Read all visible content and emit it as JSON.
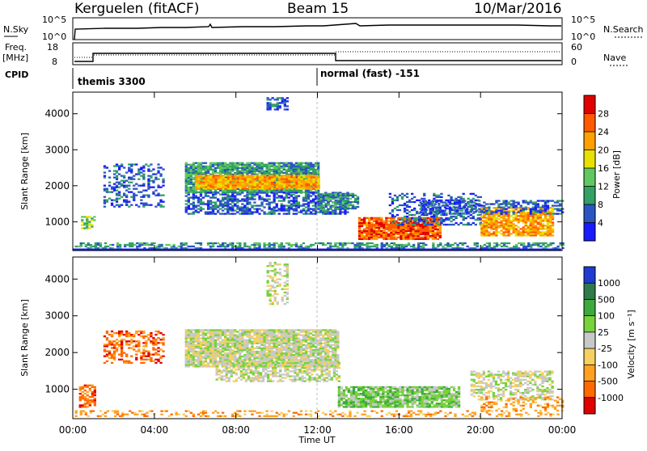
{
  "header": {
    "title": "Kerguelen (fitACF)",
    "beam": "Beam 15",
    "date": "10/Mar/2016"
  },
  "info_panels": {
    "nsky_label": "N.Sky",
    "nsky_ticks": [
      "10^5",
      "10^0"
    ],
    "nsearch_label": "N.Search",
    "nsearch_ticks": [
      "10^5",
      "10^0"
    ],
    "freq_label": "Freq.",
    "freq_unit": "[MHz]",
    "freq_ticks": [
      "18",
      "8"
    ],
    "nave_label": "Nave",
    "nave_ticks": [
      "60",
      "0"
    ],
    "cpid_label": "CPID",
    "cpid_mode1": "themis 3300",
    "cpid_mode2": "normal (fast) -151"
  },
  "chart_data": [
    {
      "type": "heatmap",
      "panel": "power",
      "xlabel": "",
      "ylabel": "Slant Range [km]",
      "x_ticks": [
        "00:00",
        "04:00",
        "08:00",
        "12:00",
        "16:00",
        "20:00",
        "00:00"
      ],
      "y_ticks": [
        "1000",
        "2000",
        "3000",
        "4000"
      ],
      "xlim": [
        0,
        24
      ],
      "ylim": [
        200,
        4600
      ],
      "colorbar_label": "Power [dB]",
      "colorbar_ticks": [
        "4",
        "8",
        "12",
        "16",
        "20",
        "24",
        "28"
      ],
      "colorbar_colors": [
        "#1a1aff",
        "#2b55c2",
        "#33a066",
        "#60c860",
        "#e8e000",
        "#ffa000",
        "#ff5a00",
        "#e00000"
      ],
      "regions": [
        {
          "t0": 0.1,
          "t1": 24,
          "r0": 250,
          "r1": 420,
          "level": 2,
          "density": 0.55
        },
        {
          "t0": 0.4,
          "t1": 1.1,
          "r0": 800,
          "r1": 1150,
          "level": 3,
          "density": 0.6
        },
        {
          "t0": 1.5,
          "t1": 4.5,
          "r0": 1400,
          "r1": 2600,
          "level": 1,
          "density": 0.35
        },
        {
          "t0": 5.5,
          "t1": 12.0,
          "r0": 1800,
          "r1": 2650,
          "level": 2,
          "density": 0.9
        },
        {
          "t0": 6.0,
          "t1": 12.0,
          "r0": 1900,
          "r1": 2300,
          "level": 5,
          "density": 0.95
        },
        {
          "t0": 5.5,
          "t1": 13.5,
          "r0": 1200,
          "r1": 1800,
          "level": 1,
          "density": 0.6
        },
        {
          "t0": 12.0,
          "t1": 14.0,
          "r0": 1350,
          "r1": 1800,
          "level": 2,
          "density": 0.7
        },
        {
          "t0": 9.5,
          "t1": 10.5,
          "r0": 4100,
          "r1": 4450,
          "level": 1,
          "density": 0.6
        },
        {
          "t0": 14.0,
          "t1": 18.0,
          "r0": 500,
          "r1": 1100,
          "level": 6,
          "density": 0.9
        },
        {
          "t0": 15.5,
          "t1": 20.0,
          "r0": 900,
          "r1": 1800,
          "level": 1,
          "density": 0.4
        },
        {
          "t0": 20.0,
          "t1": 23.5,
          "r0": 600,
          "r1": 1400,
          "level": 5,
          "density": 0.8
        },
        {
          "t0": 17.0,
          "t1": 24.0,
          "r0": 1200,
          "r1": 1600,
          "level": 1,
          "density": 0.5
        }
      ]
    },
    {
      "type": "heatmap",
      "panel": "velocity",
      "xlabel": "Time UT",
      "ylabel": "Slant Range [km]",
      "x_ticks": [
        "00:00",
        "04:00",
        "08:00",
        "12:00",
        "16:00",
        "20:00",
        "00:00"
      ],
      "y_ticks": [
        "1000",
        "2000",
        "3000",
        "4000"
      ],
      "xlim": [
        0,
        24
      ],
      "ylim": [
        200,
        4600
      ],
      "colorbar_label": "Velocity [m s⁻¹]",
      "colorbar_ticks": [
        "1000",
        "500",
        "100",
        "25",
        "-25",
        "-100",
        "-500",
        "-1000"
      ],
      "colorbar_colors": [
        "#1e3cd2",
        "#2e7a4a",
        "#3caa3c",
        "#78d23c",
        "#c8c8c8",
        "#f5d060",
        "#ffa020",
        "#ff6a00",
        "#e00000"
      ],
      "regions": [
        {
          "t0": 0.1,
          "t1": 24,
          "r0": 250,
          "r1": 420,
          "level": 6,
          "density": 0.3
        },
        {
          "t0": 0.3,
          "t1": 1.1,
          "r0": 500,
          "r1": 1100,
          "level": 7,
          "density": 0.6
        },
        {
          "t0": 1.5,
          "t1": 4.5,
          "r0": 1700,
          "r1": 2600,
          "level": 7,
          "density": 0.45
        },
        {
          "t0": 5.5,
          "t1": 13.0,
          "r0": 1600,
          "r1": 2600,
          "level": 4,
          "density": 0.9
        },
        {
          "t0": 7.0,
          "t1": 13.0,
          "r0": 1200,
          "r1": 1700,
          "level": 4,
          "density": 0.6
        },
        {
          "t0": 9.5,
          "t1": 10.5,
          "r0": 3300,
          "r1": 4450,
          "level": 4,
          "density": 0.35
        },
        {
          "t0": 13.0,
          "t1": 19.0,
          "r0": 500,
          "r1": 1050,
          "level": 3,
          "density": 0.85
        },
        {
          "t0": 19.5,
          "t1": 23.5,
          "r0": 700,
          "r1": 1500,
          "level": 4,
          "density": 0.55
        },
        {
          "t0": 20.0,
          "t1": 24.0,
          "r0": 400,
          "r1": 800,
          "level": 6,
          "density": 0.3
        }
      ]
    }
  ]
}
